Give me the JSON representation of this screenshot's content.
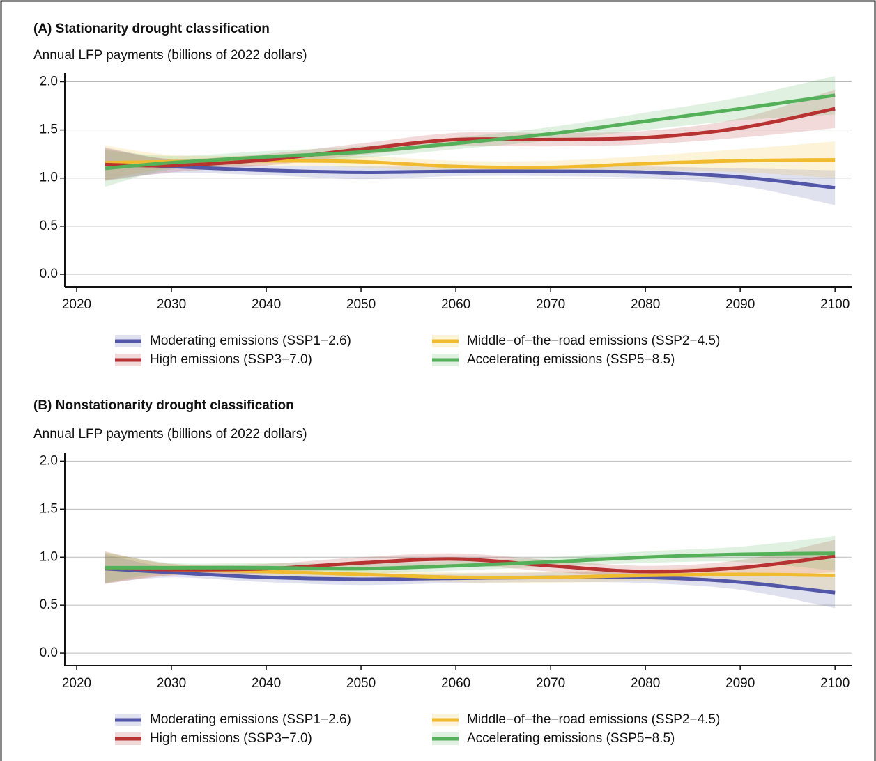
{
  "chart_data": [
    {
      "type": "line",
      "title": "(A) Stationarity drought classification",
      "subtitle": "Annual LFP payments (billions of 2022 dollars)",
      "x": [
        2023,
        2030,
        2040,
        2050,
        2060,
        2070,
        2080,
        2090,
        2100
      ],
      "series": [
        {
          "name": "Moderating emissions (SSP1−2.6)",
          "color": "#5257a8",
          "values": [
            1.15,
            1.12,
            1.08,
            1.06,
            1.07,
            1.07,
            1.06,
            1.01,
            0.9
          ],
          "lower": [
            0.98,
            1.05,
            1.03,
            0.99,
            1.02,
            1.02,
            1.0,
            0.92,
            0.72
          ],
          "upper": [
            1.32,
            1.19,
            1.13,
            1.12,
            1.12,
            1.12,
            1.12,
            1.1,
            1.08
          ]
        },
        {
          "name": "Middle−of−the−road emissions (SSP2−4.5)",
          "color": "#f0bb2e",
          "values": [
            1.16,
            1.17,
            1.18,
            1.17,
            1.12,
            1.11,
            1.15,
            1.18,
            1.19
          ],
          "lower": [
            0.98,
            1.1,
            1.13,
            1.11,
            1.06,
            1.05,
            1.08,
            1.06,
            1.0
          ],
          "upper": [
            1.34,
            1.24,
            1.23,
            1.23,
            1.18,
            1.18,
            1.23,
            1.3,
            1.38
          ]
        },
        {
          "name": "High emissions (SSP3−7.0)",
          "color": "#b83232",
          "values": [
            1.14,
            1.13,
            1.19,
            1.3,
            1.4,
            1.4,
            1.42,
            1.52,
            1.72
          ],
          "lower": [
            0.97,
            1.06,
            1.13,
            1.24,
            1.33,
            1.33,
            1.35,
            1.42,
            1.52
          ],
          "upper": [
            1.31,
            1.2,
            1.25,
            1.36,
            1.47,
            1.47,
            1.49,
            1.62,
            1.92
          ]
        },
        {
          "name": "Accelerating emissions (SSP5−8.5)",
          "color": "#55b05a",
          "values": [
            1.1,
            1.16,
            1.22,
            1.27,
            1.36,
            1.46,
            1.59,
            1.72,
            1.86
          ],
          "lower": [
            0.91,
            1.09,
            1.16,
            1.21,
            1.3,
            1.39,
            1.5,
            1.6,
            1.66
          ],
          "upper": [
            1.29,
            1.23,
            1.28,
            1.33,
            1.42,
            1.53,
            1.68,
            1.84,
            2.06
          ]
        }
      ],
      "xlim": [
        2018.75,
        2101.75
      ],
      "ylim": [
        -0.13,
        2.09
      ],
      "xticks": [
        2020,
        2030,
        2040,
        2050,
        2060,
        2070,
        2080,
        2090,
        2100
      ],
      "yticks": [
        {
          "value": 0,
          "label": "0.0"
        },
        {
          "value": 0.5,
          "label": "0.5"
        },
        {
          "value": 1,
          "label": "1.0"
        },
        {
          "value": 1.5,
          "label": "1.5"
        },
        {
          "value": 2,
          "label": "2.0"
        }
      ],
      "grid": true
    },
    {
      "type": "line",
      "title": "(B) Nonstationarity drought classification",
      "subtitle": "Annual LFP payments (billions of 2022 dollars)",
      "x": [
        2023,
        2030,
        2040,
        2050,
        2060,
        2070,
        2080,
        2090,
        2100
      ],
      "series": [
        {
          "name": "Moderating emissions (SSP1−2.6)",
          "color": "#5257a8",
          "values": [
            0.88,
            0.84,
            0.79,
            0.77,
            0.78,
            0.79,
            0.79,
            0.74,
            0.63
          ],
          "lower": [
            0.73,
            0.79,
            0.74,
            0.71,
            0.73,
            0.74,
            0.73,
            0.66,
            0.47
          ],
          "upper": [
            1.03,
            0.89,
            0.84,
            0.83,
            0.83,
            0.84,
            0.85,
            0.82,
            0.79
          ]
        },
        {
          "name": "Middle−of−the−road emissions (SSP2−4.5)",
          "color": "#f0bb2e",
          "values": [
            0.89,
            0.87,
            0.85,
            0.82,
            0.79,
            0.79,
            0.81,
            0.82,
            0.81
          ],
          "lower": [
            0.73,
            0.81,
            0.8,
            0.77,
            0.74,
            0.73,
            0.75,
            0.73,
            0.64
          ],
          "upper": [
            1.05,
            0.93,
            0.9,
            0.87,
            0.84,
            0.85,
            0.87,
            0.91,
            0.98
          ]
        },
        {
          "name": "High emissions (SSP3−7.0)",
          "color": "#b83232",
          "values": [
            0.89,
            0.87,
            0.88,
            0.94,
            0.98,
            0.91,
            0.85,
            0.89,
            1.01
          ],
          "lower": [
            0.72,
            0.81,
            0.83,
            0.88,
            0.92,
            0.85,
            0.79,
            0.81,
            0.84
          ],
          "upper": [
            1.06,
            0.93,
            0.93,
            1.0,
            1.04,
            0.97,
            0.91,
            0.97,
            1.18
          ]
        },
        {
          "name": "Accelerating emissions (SSP5−8.5)",
          "color": "#55b05a",
          "values": [
            0.89,
            0.89,
            0.89,
            0.88,
            0.91,
            0.95,
            1.0,
            1.03,
            1.04
          ],
          "lower": [
            0.73,
            0.84,
            0.84,
            0.83,
            0.86,
            0.9,
            0.94,
            0.95,
            0.86
          ],
          "upper": [
            1.05,
            0.94,
            0.94,
            0.93,
            0.96,
            1.0,
            1.06,
            1.11,
            1.22
          ]
        }
      ],
      "xlim": [
        2018.75,
        2101.75
      ],
      "ylim": [
        -0.13,
        2.09
      ],
      "xticks": [
        2020,
        2030,
        2040,
        2050,
        2060,
        2070,
        2080,
        2090,
        2100
      ],
      "yticks": [
        {
          "value": 0,
          "label": "0.0"
        },
        {
          "value": 0.5,
          "label": "0.5"
        },
        {
          "value": 1,
          "label": "1.0"
        },
        {
          "value": 1.5,
          "label": "1.5"
        },
        {
          "value": 2,
          "label": "2.0"
        }
      ],
      "grid": true
    }
  ]
}
